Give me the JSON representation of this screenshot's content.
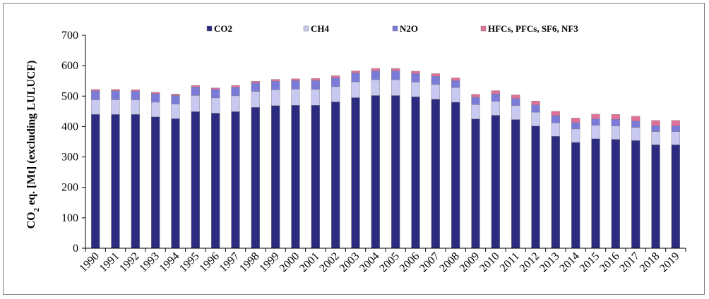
{
  "chart_data": {
    "type": "bar",
    "stacked": true,
    "categories": [
      "1990",
      "1991",
      "1992",
      "1993",
      "1994",
      "1995",
      "1996",
      "1997",
      "1998",
      "1999",
      "2000",
      "2001",
      "2002",
      "2003",
      "2004",
      "2005",
      "2006",
      "2007",
      "2008",
      "2009",
      "2010",
      "2011",
      "2012",
      "2013",
      "2014",
      "2015",
      "2016",
      "2017",
      "2018",
      "2019"
    ],
    "series": [
      {
        "name": "CO2",
        "color": "#2b2b7f",
        "values": [
          440,
          440,
          440,
          432,
          426,
          449,
          444,
          449,
          463,
          469,
          470,
          470,
          481,
          495,
          502,
          502,
          498,
          490,
          480,
          425,
          437,
          423,
          402,
          368,
          348,
          360,
          358,
          354,
          340,
          340
        ]
      },
      {
        "name": "CH4",
        "color": "#c8c8f0",
        "values": [
          48,
          48,
          48,
          48,
          48,
          53,
          50,
          52,
          52,
          52,
          53,
          52,
          50,
          52,
          52,
          52,
          48,
          48,
          48,
          47,
          46,
          46,
          45,
          44,
          44,
          44,
          44,
          43,
          43,
          43
        ]
      },
      {
        "name": "N2O",
        "color": "#7a7ad8",
        "values": [
          29,
          29,
          28,
          28,
          28,
          28,
          28,
          28,
          28,
          28,
          28,
          29,
          29,
          29,
          29,
          29,
          28,
          27,
          23,
          24,
          24,
          23,
          24,
          24,
          21,
          21,
          22,
          21,
          20,
          20
        ]
      },
      {
        "name": "HFCs, PFCs, SF6, NF3",
        "color": "#e0709a",
        "values": [
          5,
          5,
          5,
          5,
          5,
          5,
          5,
          6,
          6,
          6,
          6,
          7,
          7,
          7,
          8,
          8,
          8,
          9,
          9,
          10,
          11,
          12,
          13,
          14,
          15,
          16,
          16,
          16,
          17,
          17
        ]
      }
    ],
    "ylim": [
      0,
      700
    ],
    "yticks": [
      "0",
      "100",
      "200",
      "300",
      "400",
      "500",
      "600",
      "700"
    ],
    "ylabel_pre": "CO",
    "ylabel_sub": "2",
    "ylabel_post": " eq. [Mt] (excluding LULUCF)",
    "grid": false,
    "legend_position": "top"
  }
}
